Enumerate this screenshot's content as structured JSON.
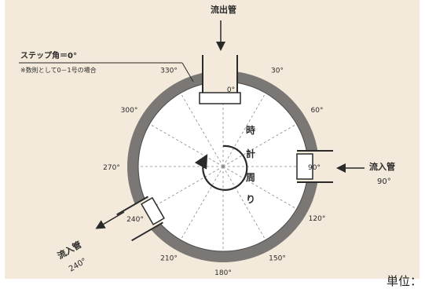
{
  "labels": {
    "outlet_pipe": "流出管",
    "step_angle": "ステップ角＝0°",
    "note": "※数則として0－1号の場合",
    "clockwise": [
      "時",
      "計",
      "周",
      "り"
    ],
    "inlet_right": "流入管",
    "inlet_right_angle": "90°",
    "inlet_left": "流入管",
    "inlet_left_angle": "240°",
    "unit": "単位："
  },
  "angles": [
    {
      "deg": 0,
      "label": "0°"
    },
    {
      "deg": 30,
      "label": "30°"
    },
    {
      "deg": 60,
      "label": "60°"
    },
    {
      "deg": 90,
      "label": "90°"
    },
    {
      "deg": 120,
      "label": "120°"
    },
    {
      "deg": 150,
      "label": "150°"
    },
    {
      "deg": 180,
      "label": "180°"
    },
    {
      "deg": 210,
      "label": "210°"
    },
    {
      "deg": 240,
      "label": "240°"
    },
    {
      "deg": 270,
      "label": "270°"
    },
    {
      "deg": 300,
      "label": "300°"
    },
    {
      "deg": 330,
      "label": "330°"
    }
  ],
  "colors": {
    "panel_bg": "#f3eadb",
    "wall": "#7a7774",
    "interior": "#ffffff",
    "line": "#2a2a2a"
  }
}
